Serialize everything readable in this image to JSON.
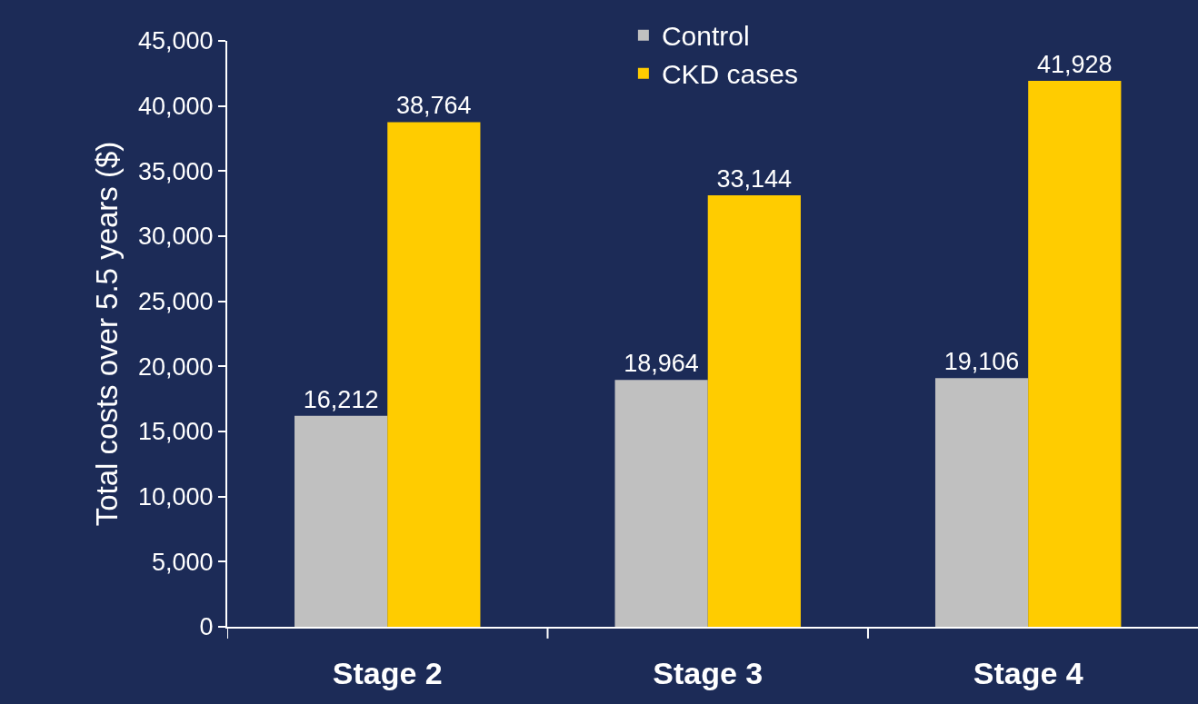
{
  "chart_data": {
    "type": "bar",
    "ylabel": "Total costs over 5.5 years ($)",
    "categories": [
      "Stage 2",
      "Stage 3",
      "Stage 4"
    ],
    "series": [
      {
        "name": "Control",
        "color": "#c0c0c0",
        "values": [
          16212,
          18964,
          19106
        ],
        "value_labels": [
          "16,212",
          "18,964",
          "19,106"
        ]
      },
      {
        "name": "CKD cases",
        "color": "#ffcc00",
        "values": [
          38764,
          33144,
          41928
        ],
        "value_labels": [
          "38,764",
          "33,144",
          "41,928"
        ]
      }
    ],
    "ylim": [
      0,
      45000
    ],
    "yticks": [
      {
        "value": 0,
        "label": "0"
      },
      {
        "value": 5000,
        "label": "5,000"
      },
      {
        "value": 10000,
        "label": "10,000"
      },
      {
        "value": 15000,
        "label": "15,000"
      },
      {
        "value": 20000,
        "label": "20,000"
      },
      {
        "value": 25000,
        "label": "25,000"
      },
      {
        "value": 30000,
        "label": "30,000"
      },
      {
        "value": 35000,
        "label": "35,000"
      },
      {
        "value": 40000,
        "label": "40,000"
      },
      {
        "value": 45000,
        "label": "45,000"
      }
    ],
    "grid": false,
    "legend": "top"
  }
}
